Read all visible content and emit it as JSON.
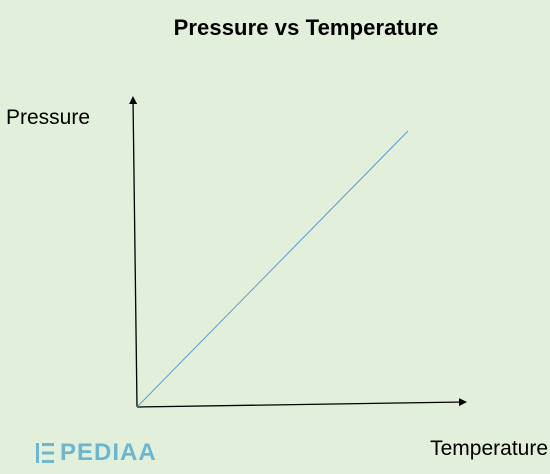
{
  "chart_data": {
    "type": "line",
    "title": "Pressure vs Temperature",
    "xlabel": "Temperature",
    "ylabel": "Pressure",
    "xlim": [
      0,
      1
    ],
    "ylim": [
      0,
      1
    ],
    "grid": false,
    "axes": "arrows, no ticks",
    "series": [
      {
        "x": [
          0,
          1
        ],
        "y": [
          0,
          1
        ],
        "color": "#5b9bd5"
      }
    ]
  },
  "watermark": {
    "text": "PEDIAA",
    "icon": "pediaa-logo-icon",
    "color": "#6cb6cf"
  },
  "colors": {
    "background": "#e2efda",
    "axis": "#000000",
    "line": "#5b9bd5"
  }
}
